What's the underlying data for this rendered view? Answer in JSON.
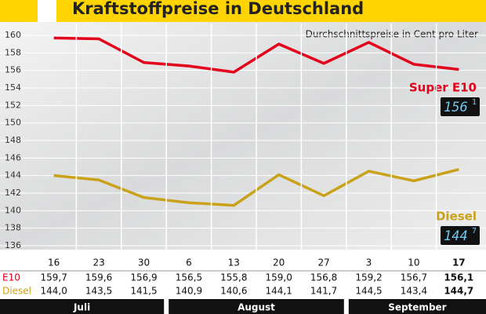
{
  "chart_data": {
    "type": "line",
    "title": "Kraftstoffpreise in Deutschland",
    "subtitle": "Durchschnittspreise in Cent pro Liter",
    "categories": [
      "16",
      "23",
      "30",
      "6",
      "13",
      "20",
      "27",
      "3",
      "10",
      "17"
    ],
    "months": [
      {
        "label": "Juli",
        "count": 3
      },
      {
        "label": "August",
        "count": 4
      },
      {
        "label": "September",
        "count": 3
      }
    ],
    "series": [
      {
        "name": "Super E10",
        "row_label": "E10",
        "color": "#e2001a",
        "values": [
          159.7,
          159.6,
          156.9,
          156.5,
          155.8,
          159.0,
          156.8,
          159.2,
          156.7,
          156.1
        ],
        "value_labels": [
          "159,7",
          "159,6",
          "156,9",
          "156,5",
          "155,8",
          "159,0",
          "156,8",
          "159,2",
          "156,7",
          "156,1"
        ],
        "display": {
          "main": "156",
          "sup": "1"
        }
      },
      {
        "name": "Diesel",
        "row_label": "Diesel",
        "color": "#c9a21a",
        "values": [
          144.0,
          143.5,
          141.5,
          140.9,
          140.6,
          144.1,
          141.7,
          144.5,
          143.4,
          144.7
        ],
        "value_labels": [
          "144,0",
          "143,5",
          "141,5",
          "140,9",
          "140,6",
          "144,1",
          "141,7",
          "144,5",
          "143,4",
          "144,7"
        ],
        "display": {
          "main": "144",
          "sup": "7"
        }
      }
    ],
    "ylim": [
      136,
      160
    ],
    "yticks": [
      136,
      138,
      140,
      142,
      144,
      146,
      148,
      150,
      152,
      154,
      156,
      158,
      160
    ],
    "grid": true
  }
}
